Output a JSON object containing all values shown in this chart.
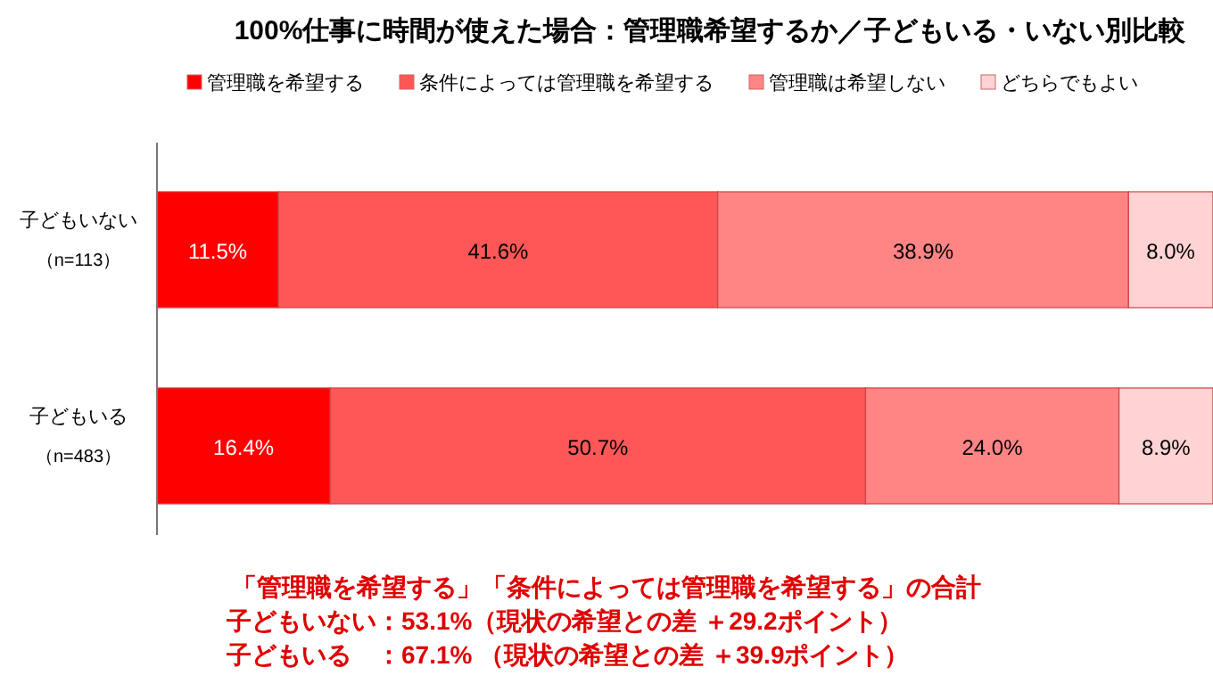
{
  "chart_data": {
    "type": "bar",
    "orientation": "horizontal",
    "stacked": true,
    "title": "100%仕事に時間が使えた場合：管理職希望するか／子どもいる・いない別比較",
    "categories": [
      "子どもいない（n=113）",
      "子どもいる（n=483）"
    ],
    "series": [
      {
        "name": "管理職を希望する",
        "color": "#ff0000",
        "values": [
          11.5,
          16.4
        ],
        "value_labels": [
          "11.5%",
          "16.4%"
        ]
      },
      {
        "name": "条件によっては管理職を希望する",
        "color": "#ff5757",
        "values": [
          41.6,
          50.7
        ],
        "value_labels": [
          "41.6%",
          "50.7%"
        ]
      },
      {
        "name": "管理職は希望しない",
        "color": "#ff8585",
        "values": [
          38.9,
          24.0
        ],
        "value_labels": [
          "38.9%",
          "24.0%"
        ]
      },
      {
        "name": "どちらでもよい",
        "color": "#ffd3d3",
        "values": [
          8.0,
          8.9
        ],
        "value_labels": [
          "8.0%",
          "8.9%"
        ]
      }
    ],
    "legend": "top",
    "annotations": [
      "「管理職を希望する」「条件によっては管理職を希望する」の合計",
      "子どもいない：53.1%（現状の希望との差 ＋29.2ポイント）",
      "子どもいる　：67.1% （現状の希望との差 ＋39.9ポイント）"
    ]
  }
}
